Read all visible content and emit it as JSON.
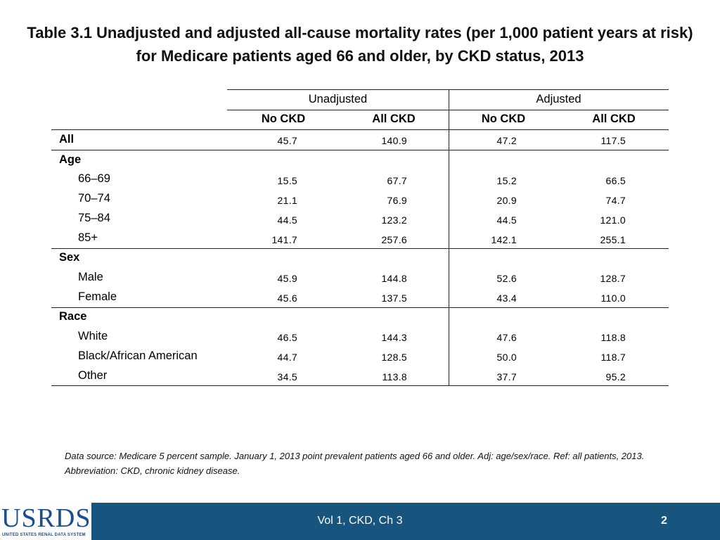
{
  "title": "Table 3.1  Unadjusted and adjusted all-cause mortality rates (per 1,000 patient years at risk) for Medicare patients aged 66 and older, by CKD status, 2013",
  "table": {
    "group_headers": [
      "Unadjusted",
      "Adjusted"
    ],
    "sub_headers": [
      "No CKD",
      "All CKD",
      "No CKD",
      "All CKD"
    ],
    "rows": {
      "all": {
        "label": "All",
        "values": [
          "45.7",
          "140.9",
          "47.2",
          "117.5"
        ]
      },
      "age": {
        "label": "Age"
      },
      "age1": {
        "label": "66–69",
        "values": [
          "15.5",
          "67.7",
          "15.2",
          "66.5"
        ]
      },
      "age2": {
        "label": "70–74",
        "values": [
          "21.1",
          "76.9",
          "20.9",
          "74.7"
        ]
      },
      "age3": {
        "label": "75–84",
        "values": [
          "44.5",
          "123.2",
          "44.5",
          "121.0"
        ]
      },
      "age4": {
        "label": "85+",
        "values": [
          "141.7",
          "257.6",
          "142.1",
          "255.1"
        ]
      },
      "sex": {
        "label": "Sex"
      },
      "male": {
        "label": "Male",
        "values": [
          "45.9",
          "144.8",
          "52.6",
          "128.7"
        ]
      },
      "female": {
        "label": "Female",
        "values": [
          "45.6",
          "137.5",
          "43.4",
          "110.0"
        ]
      },
      "race": {
        "label": "Race"
      },
      "white": {
        "label": "White",
        "values": [
          "46.5",
          "144.3",
          "47.6",
          "118.8"
        ]
      },
      "black": {
        "label": "Black/African American",
        "values": [
          "44.7",
          "128.5",
          "50.0",
          "118.7"
        ]
      },
      "other": {
        "label": "Other",
        "values": [
          "34.5",
          "113.8",
          "37.7",
          "95.2"
        ]
      }
    }
  },
  "note": "Data source: Medicare 5 percent sample. January 1, 2013 point prevalent patients aged 66 and older. Adj: age/sex/race. Ref: all patients, 2013. Abbreviation: CKD, chronic kidney disease.",
  "footer": {
    "logo": "USRDS",
    "logo_sub": "UNITED STATES RENAL DATA SYSTEM",
    "center": "Vol 1, CKD, Ch 3",
    "page": "2"
  }
}
